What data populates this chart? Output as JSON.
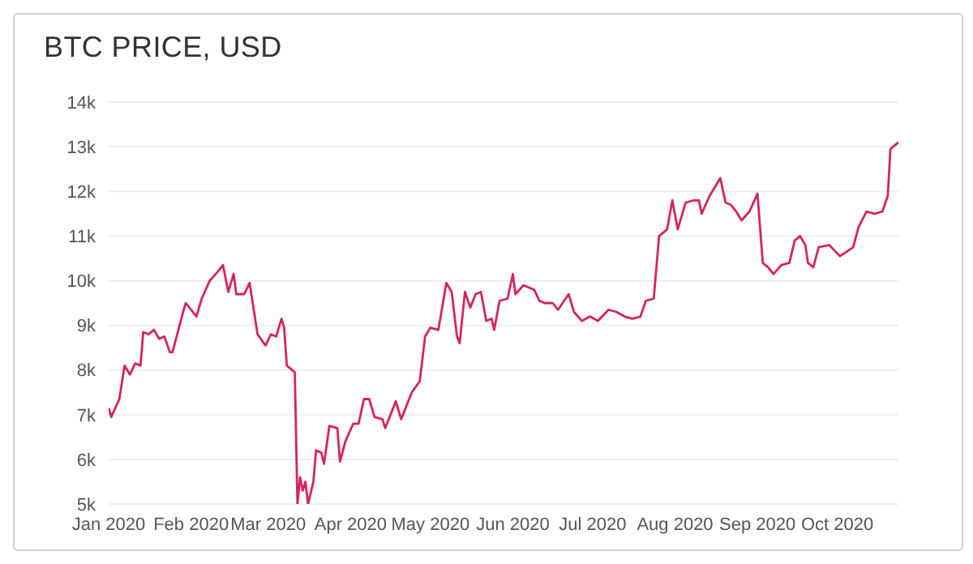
{
  "chart_data": {
    "type": "line",
    "title": "BTC PRICE, USD",
    "x": [
      "2020-01-01",
      "2020-01-02",
      "2020-01-05",
      "2020-01-07",
      "2020-01-09",
      "2020-01-11",
      "2020-01-13",
      "2020-01-14",
      "2020-01-16",
      "2020-01-18",
      "2020-01-20",
      "2020-01-22",
      "2020-01-24",
      "2020-01-25",
      "2020-01-29",
      "2020-01-30",
      "2020-02-03",
      "2020-02-05",
      "2020-02-08",
      "2020-02-11",
      "2020-02-13",
      "2020-02-15",
      "2020-02-17",
      "2020-02-18",
      "2020-02-21",
      "2020-02-23",
      "2020-02-26",
      "2020-02-29",
      "2020-03-02",
      "2020-03-04",
      "2020-03-06",
      "2020-03-07",
      "2020-03-08",
      "2020-03-11",
      "2020-03-12",
      "2020-03-13",
      "2020-03-14",
      "2020-03-15",
      "2020-03-16",
      "2020-03-18",
      "2020-03-19",
      "2020-03-21",
      "2020-03-22",
      "2020-03-24",
      "2020-03-27",
      "2020-03-28",
      "2020-03-30",
      "2020-04-02",
      "2020-04-04",
      "2020-04-06",
      "2020-04-08",
      "2020-04-10",
      "2020-04-13",
      "2020-04-14",
      "2020-04-17",
      "2020-04-18",
      "2020-04-20",
      "2020-04-24",
      "2020-04-27",
      "2020-04-29",
      "2020-05-01",
      "2020-05-04",
      "2020-05-07",
      "2020-05-09",
      "2020-05-11",
      "2020-05-12",
      "2020-05-14",
      "2020-05-16",
      "2020-05-18",
      "2020-05-20",
      "2020-05-22",
      "2020-05-24",
      "2020-05-25",
      "2020-05-27",
      "2020-05-30",
      "2020-06-01",
      "2020-06-02",
      "2020-06-05",
      "2020-06-09",
      "2020-06-11",
      "2020-06-13",
      "2020-06-16",
      "2020-06-18",
      "2020-06-22",
      "2020-06-24",
      "2020-06-27",
      "2020-06-30",
      "2020-07-03",
      "2020-07-07",
      "2020-07-10",
      "2020-07-13",
      "2020-07-16",
      "2020-07-19",
      "2020-07-21",
      "2020-07-24",
      "2020-07-26",
      "2020-07-29",
      "2020-07-31",
      "2020-08-02",
      "2020-08-05",
      "2020-08-08",
      "2020-08-10",
      "2020-08-11",
      "2020-08-14",
      "2020-08-18",
      "2020-08-20",
      "2020-08-22",
      "2020-08-24",
      "2020-08-26",
      "2020-08-29",
      "2020-09-01",
      "2020-09-03",
      "2020-09-05",
      "2020-09-07",
      "2020-09-10",
      "2020-09-13",
      "2020-09-15",
      "2020-09-17",
      "2020-09-19",
      "2020-09-20",
      "2020-09-22",
      "2020-09-24",
      "2020-09-28",
      "2020-10-02",
      "2020-10-07",
      "2020-10-09",
      "2020-10-12",
      "2020-10-15",
      "2020-10-18",
      "2020-10-20",
      "2020-10-21",
      "2020-10-22",
      "2020-10-24"
    ],
    "series": [
      {
        "color": "#d6245a",
        "values": [
          7150,
          6950,
          7350,
          8100,
          7900,
          8150,
          8100,
          8850,
          8800,
          8900,
          8700,
          8750,
          8400,
          8400,
          9300,
          9500,
          9200,
          9600,
          10000,
          10200,
          10350,
          9750,
          10150,
          9700,
          9700,
          9950,
          8800,
          8550,
          8800,
          8750,
          9150,
          8950,
          8100,
          7950,
          5000,
          5600,
          5300,
          5500,
          5000,
          5500,
          6200,
          6150,
          5900,
          6750,
          6700,
          5950,
          6400,
          6800,
          6800,
          7350,
          7350,
          6950,
          6900,
          6700,
          7150,
          7300,
          6900,
          7500,
          7750,
          8750,
          8950,
          8900,
          9950,
          9750,
          8750,
          8600,
          9750,
          9400,
          9700,
          9750,
          9100,
          9150,
          8900,
          9550,
          9600,
          10150,
          9700,
          9900,
          9800,
          9550,
          9500,
          9500,
          9350,
          9700,
          9300,
          9100,
          9200,
          9100,
          9350,
          9300,
          9200,
          9150,
          9200,
          9550,
          9600,
          11000,
          11150,
          11800,
          11150,
          11750,
          11800,
          11800,
          11500,
          11900,
          12300,
          11750,
          11700,
          11550,
          11350,
          11550,
          11950,
          10400,
          10300,
          10150,
          10350,
          10400,
          10900,
          11000,
          10800,
          10400,
          10300,
          10750,
          10800,
          10550,
          10750,
          11200,
          11550,
          11500,
          11550,
          11900,
          12950,
          13000,
          13100
        ]
      }
    ],
    "xlim": [
      "2020-01-01",
      "2020-10-24"
    ],
    "xticks": [
      {
        "value": "2020-01-01",
        "label": "Jan 2020"
      },
      {
        "value": "2020-02-01",
        "label": "Feb 2020"
      },
      {
        "value": "2020-03-01",
        "label": "Mar 2020"
      },
      {
        "value": "2020-04-01",
        "label": "Apr 2020"
      },
      {
        "value": "2020-05-01",
        "label": "May 2020"
      },
      {
        "value": "2020-06-01",
        "label": "Jun 2020"
      },
      {
        "value": "2020-07-01",
        "label": "Jul 2020"
      },
      {
        "value": "2020-08-01",
        "label": "Aug 2020"
      },
      {
        "value": "2020-09-01",
        "label": "Sep 2020"
      },
      {
        "value": "2020-10-01",
        "label": "Oct 2020"
      }
    ],
    "ylim": [
      5000,
      14000
    ],
    "yticks": [
      {
        "value": 5000,
        "label": "5k"
      },
      {
        "value": 6000,
        "label": "6k"
      },
      {
        "value": 7000,
        "label": "7k"
      },
      {
        "value": 8000,
        "label": "8k"
      },
      {
        "value": 9000,
        "label": "9k"
      },
      {
        "value": 10000,
        "label": "10k"
      },
      {
        "value": 11000,
        "label": "11k"
      },
      {
        "value": 12000,
        "label": "12k"
      },
      {
        "value": 13000,
        "label": "13k"
      },
      {
        "value": 14000,
        "label": "14k"
      }
    ],
    "grid": "y",
    "legend": false,
    "marker": "none",
    "line_style": "solid"
  }
}
